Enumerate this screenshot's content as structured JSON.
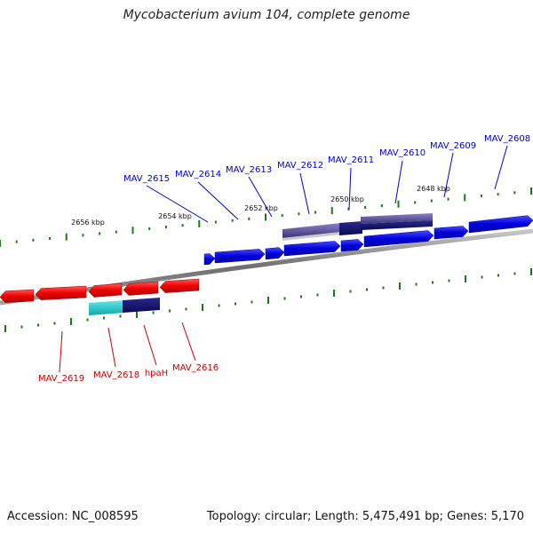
{
  "title": "Mycobacterium avium 104, complete genome",
  "footer": {
    "accession": "Accession: NC_008595",
    "summary": "Topology: circular; Length: 5,475,491 bp; Genes: 5,170"
  },
  "colors": {
    "forward_gene": "#0000dd",
    "forward_label": "#0000cc",
    "reverse_gene": "#ee0000",
    "reverse_label": "#cc0000",
    "backbone": "#808080",
    "ticks": "#1a7a1a",
    "feature_purple": "#5a4f9a",
    "feature_navy": "#151570",
    "feature_cyan": "#20c8c8"
  },
  "kbp_ticks": [
    {
      "label": "2656 kbp"
    },
    {
      "label": "2654 kbp"
    },
    {
      "label": "2652 kbp"
    },
    {
      "label": "2650 kbp"
    },
    {
      "label": "2648 kbp"
    }
  ],
  "genes_forward": [
    {
      "label": "MAV_2615"
    },
    {
      "label": "MAV_2614"
    },
    {
      "label": "MAV_2613"
    },
    {
      "label": "MAV_2612"
    },
    {
      "label": "MAV_2611"
    },
    {
      "label": "MAV_2610"
    },
    {
      "label": "MAV_2609"
    },
    {
      "label": "MAV_2608"
    }
  ],
  "genes_reverse": [
    {
      "label": "MAV_2619"
    },
    {
      "label": "MAV_2618"
    },
    {
      "label": "hpaH"
    },
    {
      "label": "MAV_2616"
    }
  ]
}
